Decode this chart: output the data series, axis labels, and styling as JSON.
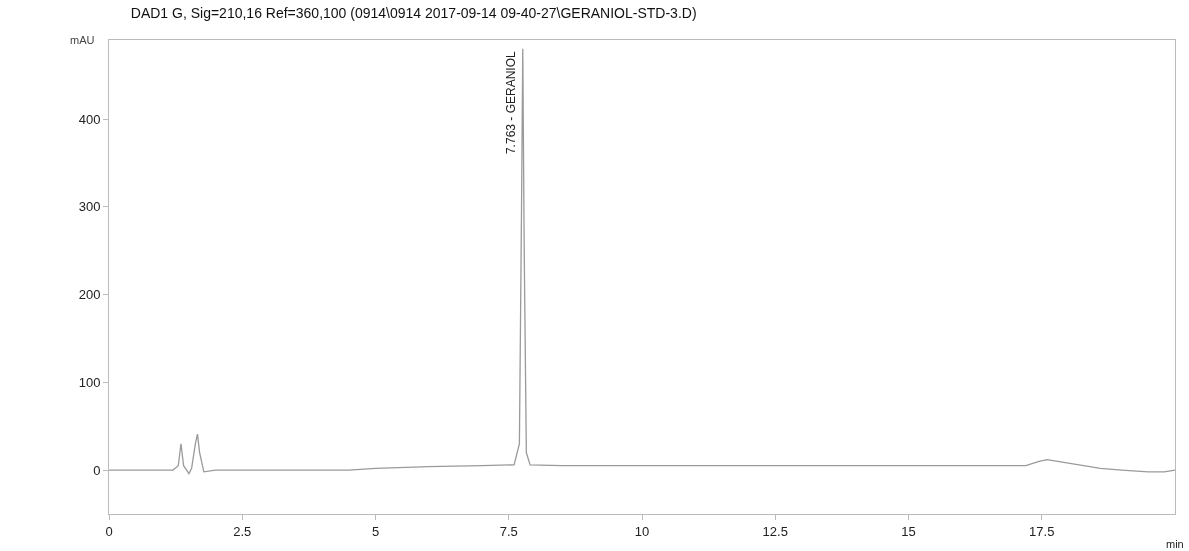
{
  "chart_data": {
    "type": "line",
    "title": "DAD1 G, Sig=210,16 Ref=360,100 (0914\\0914 2017-09-14 09-40-27\\GERANIOL-STD-3.D)",
    "xlabel": "min",
    "ylabel": "mAU",
    "series": [
      {
        "color": "#9a9a9a",
        "x": [
          0,
          1.2,
          1.3,
          1.35,
          1.4,
          1.5,
          1.55,
          1.62,
          1.66,
          1.7,
          1.78,
          2.0,
          3.0,
          4.0,
          4.5,
          5.0,
          6.0,
          7.0,
          7.6,
          7.7,
          7.74,
          7.763,
          7.79,
          7.83,
          7.9,
          8.5,
          10.0,
          12.5,
          15.0,
          17.2,
          17.45,
          17.6,
          17.8,
          18.2,
          18.6,
          19.0,
          19.5,
          19.8,
          20.0
        ],
        "values": [
          0,
          0,
          5,
          30,
          5,
          -4,
          2,
          30,
          41,
          20,
          -2,
          0,
          0,
          0,
          0,
          2,
          4,
          5,
          6,
          30,
          300,
          480,
          250,
          20,
          6,
          5,
          5,
          5,
          5,
          5,
          10,
          12,
          10,
          6,
          2,
          0,
          -2,
          -2,
          0
        ]
      }
    ],
    "annotations": [
      {
        "text": "7.763 - GERANIOL",
        "x": 7.763,
        "y": 480
      }
    ],
    "xlim": [
      0,
      20
    ],
    "xticks": [
      0,
      2.5,
      5,
      7.5,
      10,
      12.5,
      15,
      17.5
    ],
    "ylim": [
      -50,
      490
    ],
    "yticks": [
      0,
      100,
      200,
      300,
      400
    ],
    "marker": "none",
    "line_style": "solid"
  }
}
